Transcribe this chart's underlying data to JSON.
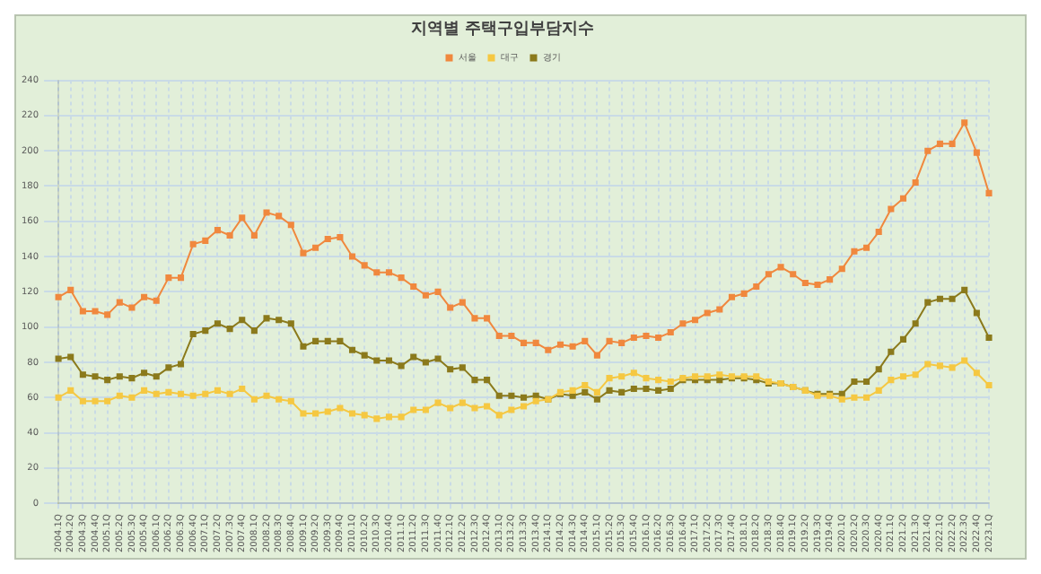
{
  "chart_data": {
    "type": "line",
    "title": "지역별 주택구입부담지수",
    "categories": [
      "2004.1Q",
      "2004.2Q",
      "2004.3Q",
      "2004.4Q",
      "2005.1Q",
      "2005.2Q",
      "2005.3Q",
      "2005.4Q",
      "2006.1Q",
      "2006.2Q",
      "2006.3Q",
      "2006.4Q",
      "2007.1Q",
      "2007.2Q",
      "2007.3Q",
      "2007.4Q",
      "2008.1Q",
      "2008.2Q",
      "2008.3Q",
      "2008.4Q",
      "2009.1Q",
      "2009.2Q",
      "2009.3Q",
      "2009.4Q",
      "2010.1Q",
      "2010.2Q",
      "2010.3Q",
      "2010.4Q",
      "2011.1Q",
      "2011.2Q",
      "2011.3Q",
      "2011.4Q",
      "2012.1Q",
      "2012.2Q",
      "2012.3Q",
      "2012.4Q",
      "2013.1Q",
      "2013.2Q",
      "2013.3Q",
      "2013.4Q",
      "2014.1Q",
      "2014.2Q",
      "2014.3Q",
      "2014.4Q",
      "2015.1Q",
      "2015.2Q",
      "2015.3Q",
      "2015.4Q",
      "2016.1Q",
      "2016.2Q",
      "2016.3Q",
      "2016.4Q",
      "2017.1Q",
      "2017.2Q",
      "2017.3Q",
      "2017.4Q",
      "2018.1Q",
      "2018.2Q",
      "2018.3Q",
      "2018.4Q",
      "2019.1Q",
      "2019.2Q",
      "2019.3Q",
      "2019.4Q",
      "2020.1Q",
      "2020.2Q",
      "2020.3Q",
      "2020.4Q",
      "2021.1Q",
      "2021.2Q",
      "2021.3Q",
      "2021.4Q",
      "2022.1Q",
      "2022.2Q",
      "2022.3Q",
      "2022.4Q",
      "2023.1Q"
    ],
    "series": [
      {
        "name": "서울",
        "color": "#f0883e",
        "values": [
          117,
          121,
          109,
          109,
          107,
          114,
          111,
          117,
          115,
          128,
          128,
          147,
          149,
          155,
          152,
          162,
          152,
          165,
          163,
          158,
          142,
          145,
          150,
          151,
          140,
          135,
          131,
          131,
          128,
          123,
          118,
          120,
          111,
          114,
          105,
          105,
          95,
          95,
          91,
          91,
          87,
          90,
          89,
          92,
          84,
          92,
          91,
          94,
          95,
          94,
          97,
          102,
          104,
          108,
          110,
          117,
          119,
          123,
          130,
          134,
          130,
          125,
          124,
          127,
          133,
          143,
          145,
          154,
          167,
          173,
          182,
          200,
          204,
          204,
          216,
          199,
          176
        ]
      },
      {
        "name": "대구",
        "color": "#f5c842",
        "values": [
          60,
          64,
          58,
          58,
          58,
          61,
          60,
          64,
          62,
          63,
          62,
          61,
          62,
          64,
          62,
          65,
          59,
          61,
          59,
          58,
          51,
          51,
          52,
          54,
          51,
          50,
          48,
          49,
          49,
          53,
          53,
          57,
          54,
          57,
          54,
          55,
          50,
          53,
          55,
          58,
          59,
          63,
          64,
          67,
          63,
          71,
          72,
          74,
          71,
          70,
          69,
          71,
          72,
          72,
          73,
          72,
          72,
          72,
          69,
          68,
          66,
          64,
          61,
          61,
          59,
          60,
          60,
          64,
          70,
          72,
          73,
          79,
          78,
          77,
          81,
          74,
          67
        ]
      },
      {
        "name": "경기",
        "color": "#8b7a1c",
        "values": [
          82,
          83,
          73,
          72,
          70,
          72,
          71,
          74,
          72,
          77,
          79,
          96,
          98,
          102,
          99,
          104,
          98,
          105,
          104,
          102,
          89,
          92,
          92,
          92,
          87,
          84,
          81,
          81,
          78,
          83,
          80,
          82,
          76,
          77,
          70,
          70,
          61,
          61,
          60,
          61,
          59,
          62,
          61,
          63,
          59,
          64,
          63,
          65,
          65,
          64,
          65,
          70,
          70,
          70,
          70,
          71,
          71,
          70,
          68,
          68,
          66,
          64,
          62,
          62,
          62,
          69,
          69,
          76,
          86,
          93,
          102,
          114,
          116,
          116,
          121,
          108,
          94
        ]
      }
    ],
    "ylim": [
      0,
      240
    ],
    "yticks": [
      0,
      20,
      40,
      60,
      80,
      100,
      120,
      140,
      160,
      180,
      200,
      220,
      240
    ],
    "grid": true,
    "legend": "top",
    "marker": "square",
    "line_style": "solid"
  }
}
